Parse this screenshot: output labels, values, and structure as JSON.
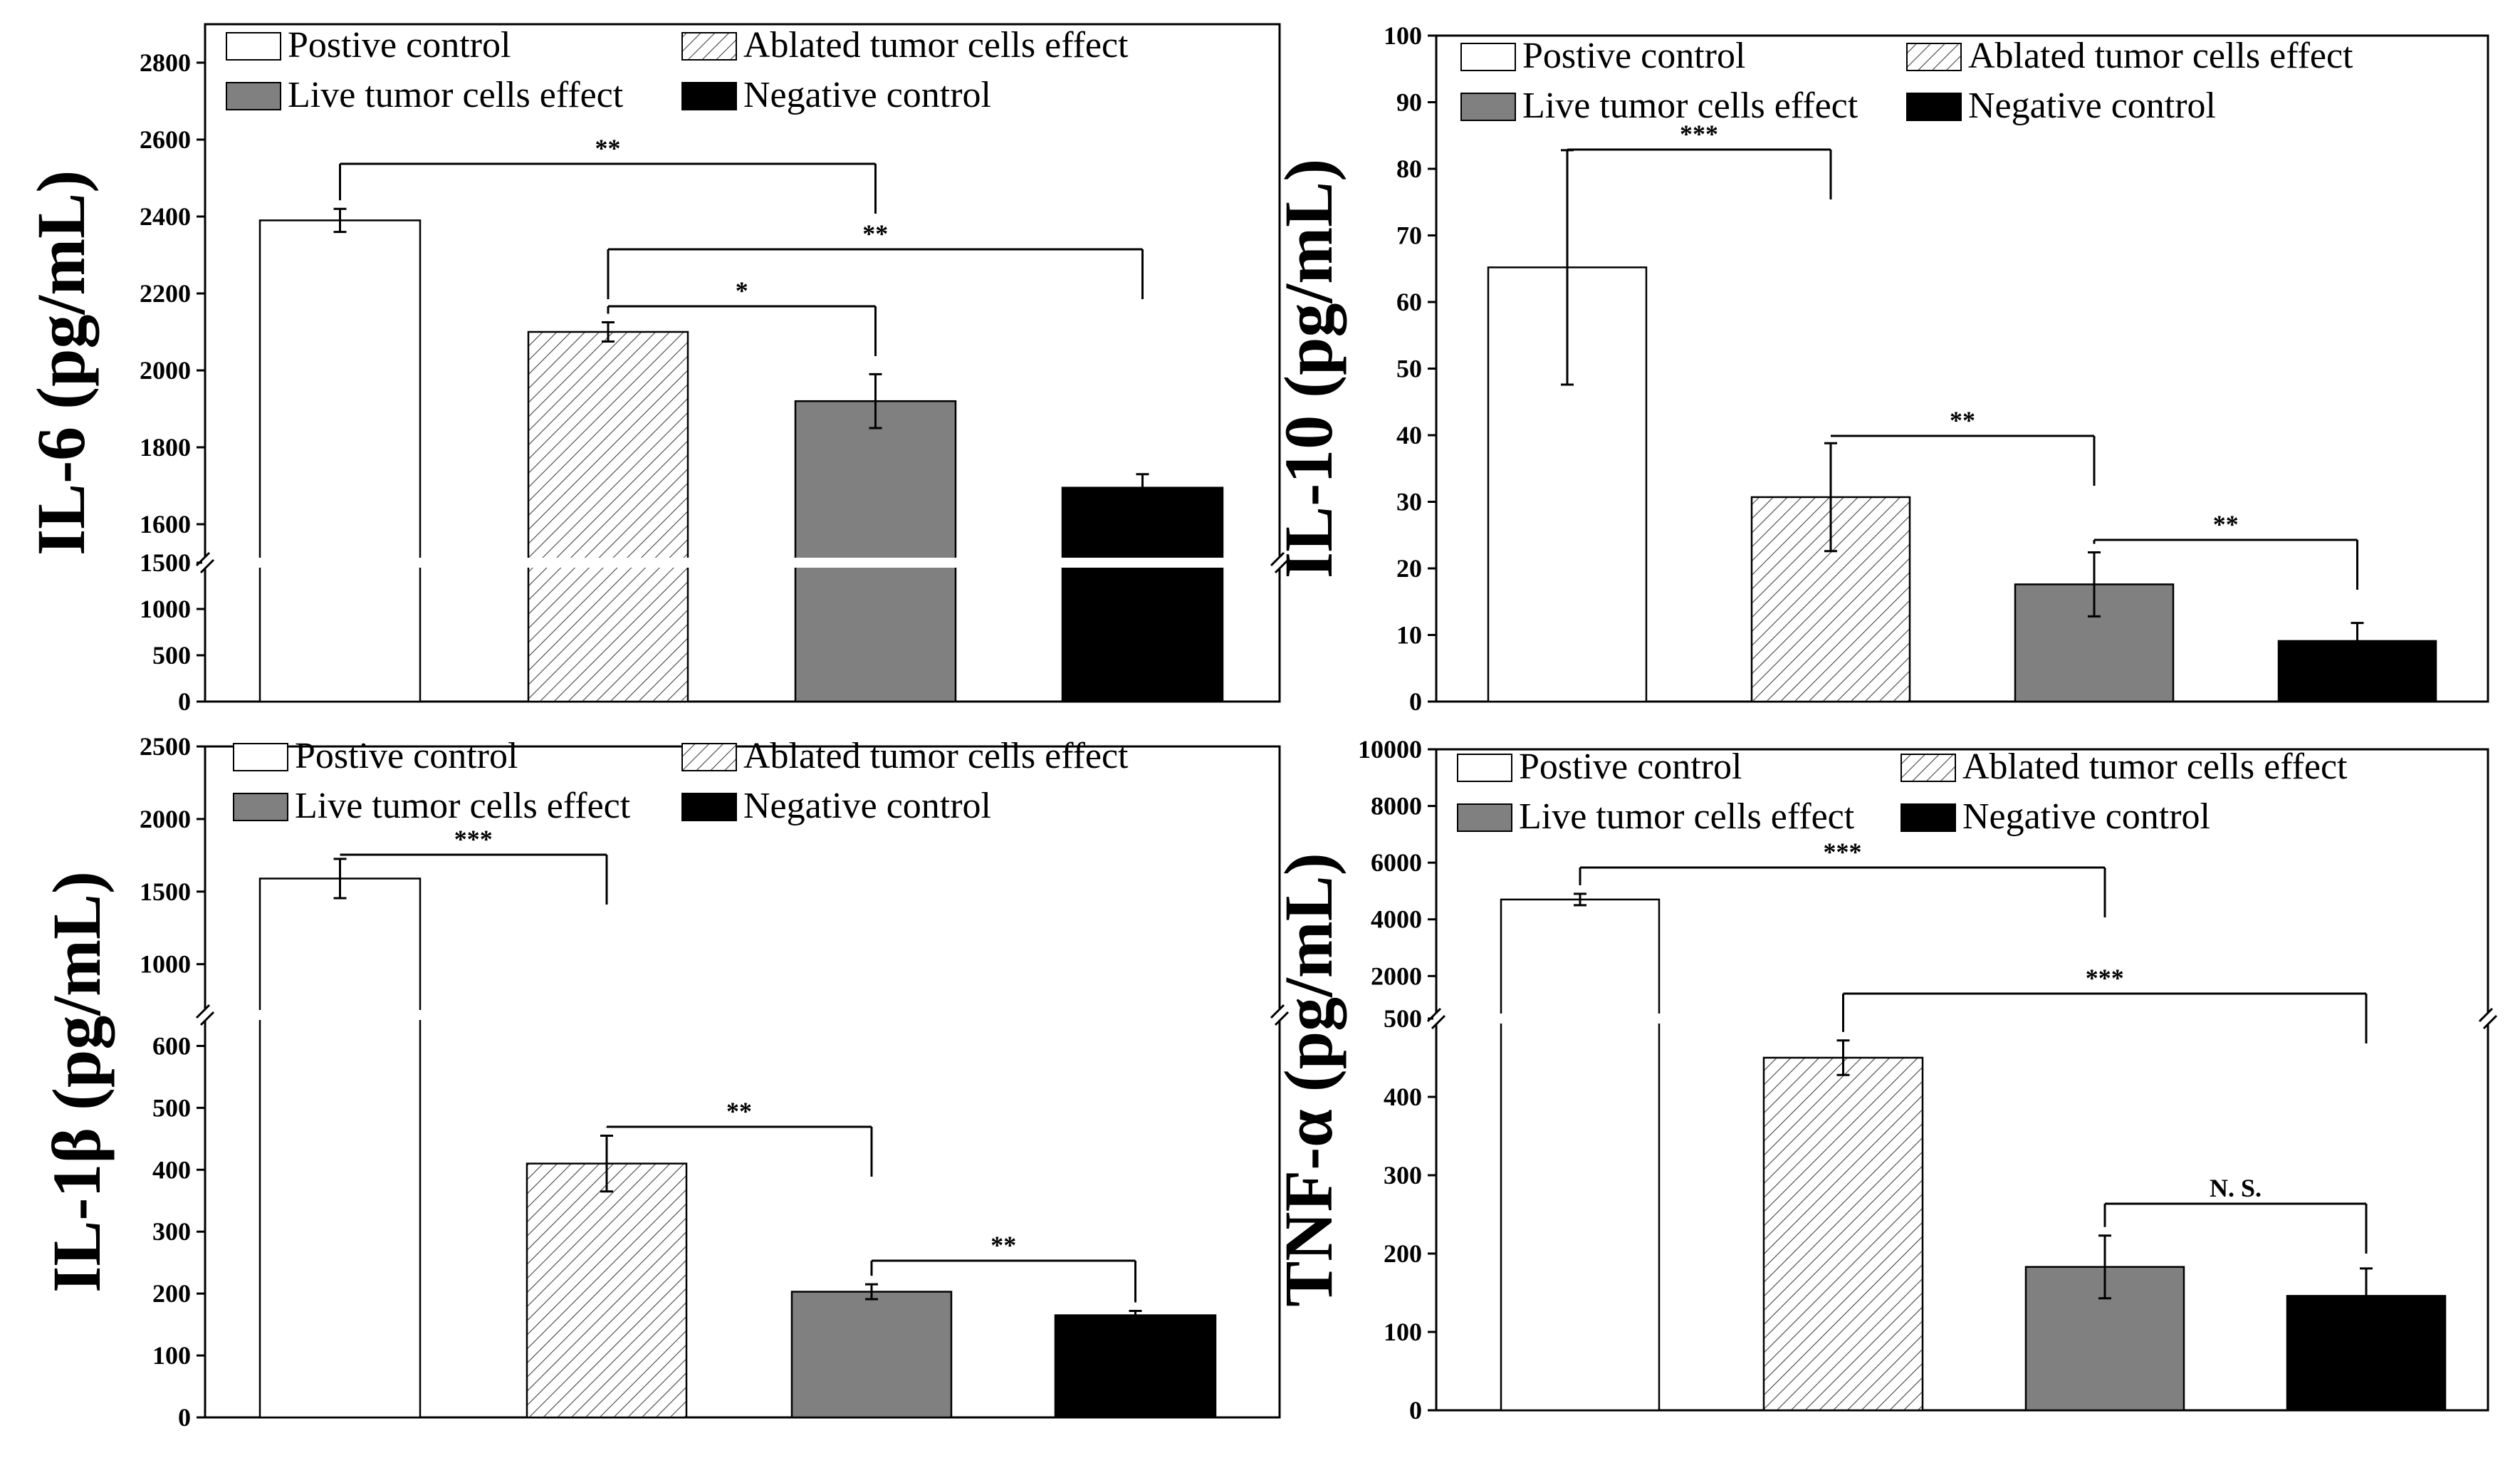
{
  "chart_data": [
    {
      "type": "bar",
      "panel": "top-left",
      "ylabel": "IL-6 (pg/mL)",
      "axis_break": true,
      "lower_ylim": [
        0,
        1500
      ],
      "upper_ylim": [
        1500,
        2900
      ],
      "lower_ticks": [
        0,
        500,
        1000,
        1500
      ],
      "upper_ticks": [
        1600,
        1800,
        2000,
        2200,
        2400,
        2600,
        2800
      ],
      "categories": [
        "Postive control",
        "Ablated tumor cells effect",
        "Live tumor cells effect",
        "Negative control"
      ],
      "values": [
        2390,
        2100,
        1920,
        1695
      ],
      "errors": [
        30,
        25,
        70,
        35
      ],
      "legend": [
        "Postive control",
        "Ablated tumor cells effect",
        "Live tumor cells effect",
        "Negative control"
      ],
      "significance": [
        {
          "from": 0,
          "to": 2,
          "label": "**"
        },
        {
          "from": 1,
          "to": 2,
          "label": "*"
        },
        {
          "from": 1,
          "to": 3,
          "label": "**"
        }
      ]
    },
    {
      "type": "bar",
      "panel": "top-right",
      "ylabel": "IL-10 (pg/mL)",
      "axis_break": false,
      "ylim": [
        0,
        100
      ],
      "ticks": [
        0,
        10,
        20,
        30,
        40,
        50,
        60,
        70,
        80,
        90,
        100
      ],
      "categories": [
        "Postive control",
        "Ablated tumor cells effect",
        "Live tumor cells effect",
        "Negative control"
      ],
      "values": [
        65.2,
        30.7,
        17.6,
        9.1
      ],
      "errors": [
        17.6,
        8.1,
        4.8,
        2.7
      ],
      "legend": [
        "Postive control",
        "Ablated tumor cells effect",
        "Live tumor cells effect",
        "Negative control"
      ],
      "significance": [
        {
          "from": 0,
          "to": 1,
          "label": "***"
        },
        {
          "from": 1,
          "to": 2,
          "label": "**"
        },
        {
          "from": 2,
          "to": 3,
          "label": "**"
        }
      ]
    },
    {
      "type": "bar",
      "panel": "bottom-left",
      "ylabel": "IL-1β (pg/mL)",
      "axis_break": true,
      "lower_ylim": [
        0,
        650
      ],
      "upper_ylim": [
        650,
        2500
      ],
      "lower_ticks": [
        0,
        100,
        200,
        300,
        400,
        500,
        600
      ],
      "upper_ticks": [
        1000,
        1500,
        2000,
        2500
      ],
      "categories": [
        "Postive control",
        "Ablated tumor cells effect",
        "Live tumor cells effect",
        "Negative control"
      ],
      "values": [
        1590,
        410,
        203,
        165
      ],
      "errors": [
        135,
        45,
        12,
        7
      ],
      "legend": [
        "Postive control",
        "Ablated tumor cells effect",
        "Live tumor cells effect",
        "Negative control"
      ],
      "significance": [
        {
          "from": 0,
          "to": 1,
          "label": "***"
        },
        {
          "from": 1,
          "to": 2,
          "label": "**"
        },
        {
          "from": 2,
          "to": 3,
          "label": "**"
        }
      ]
    },
    {
      "type": "bar",
      "panel": "bottom-right",
      "ylabel": "TNF-α (pg/mL)",
      "axis_break": true,
      "lower_ylim": [
        0,
        500
      ],
      "upper_ylim": [
        500,
        10000
      ],
      "lower_ticks": [
        0,
        100,
        200,
        300,
        400,
        500
      ],
      "upper_ticks": [
        2000,
        4000,
        6000,
        8000,
        10000
      ],
      "categories": [
        "Postive control",
        "Ablated tumor cells effect",
        "Live tumor cells effect",
        "Negative control"
      ],
      "values": [
        4700,
        450,
        183,
        146
      ],
      "errors": [
        200,
        22,
        40,
        35
      ],
      "legend": [
        "Postive control",
        "Ablated tumor cells effect",
        "Live tumor cells effect",
        "Negative control"
      ],
      "significance": [
        {
          "from": 0,
          "to": 2,
          "label": "***"
        },
        {
          "from": 1,
          "to": 3,
          "label": "***"
        },
        {
          "from": 2,
          "to": 3,
          "label": "N. S."
        }
      ]
    }
  ],
  "colors": {
    "positive": "#ffffff",
    "ablated_hatch": "#404040",
    "live": "#808080",
    "negative": "#000000"
  }
}
